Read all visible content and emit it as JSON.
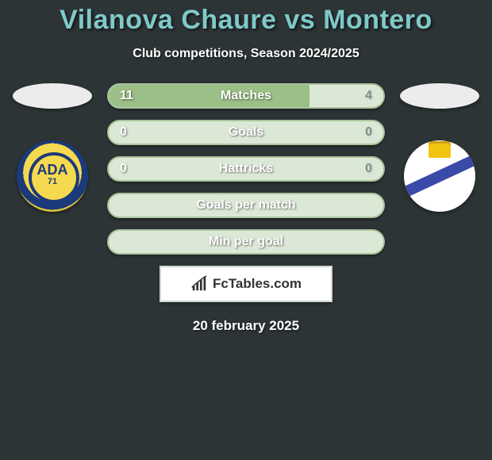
{
  "title_color": "#7fc9c9",
  "background_color": "#2d3436",
  "header": {
    "player1": "Vilanova Chaure",
    "vs": "vs",
    "player2": "Montero",
    "subtitle": "Club competitions, Season 2024/2025"
  },
  "left_crest": {
    "top_text": "ADA",
    "bottom_text": "71"
  },
  "bars": [
    {
      "label": "Matches",
      "left": "11",
      "right": "4",
      "fill_pct": 73
    },
    {
      "label": "Goals",
      "left": "0",
      "right": "0",
      "fill_pct": 0
    },
    {
      "label": "Hattricks",
      "left": "0",
      "right": "0",
      "fill_pct": 0
    },
    {
      "label": "Goals per match",
      "left": "",
      "right": "",
      "fill_pct": 0
    },
    {
      "label": "Min per goal",
      "left": "",
      "right": "",
      "fill_pct": 0
    }
  ],
  "bar_style": {
    "bg": "#dce8d6",
    "fill": "#9bbf87",
    "border": "#a9c49b",
    "label_color": "#ffffff",
    "right_val_color": "#7a918a"
  },
  "brand": {
    "text": "FcTables.com"
  },
  "date": "20 february 2025"
}
